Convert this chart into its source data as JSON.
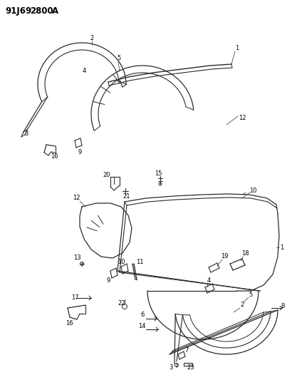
{
  "background_color": "#ffffff",
  "line_color": "#2a2a2a",
  "label_fontsize": 6.0,
  "title_fontsize": 8.5,
  "fig_width": 4.03,
  "fig_height": 5.33,
  "dpi": 100
}
